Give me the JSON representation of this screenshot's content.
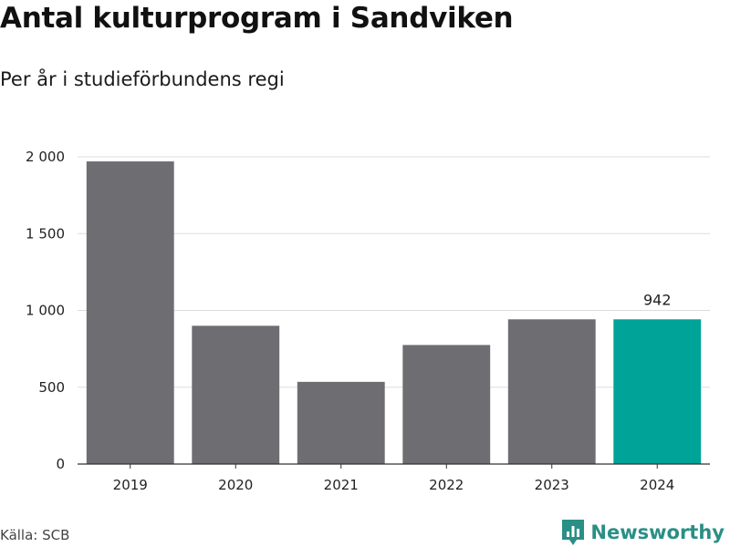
{
  "header": {
    "title": "Antal kulturprogram i Sandviken",
    "subtitle": "Per år i studieförbundens regi"
  },
  "footer": {
    "source": "Källa: SCB",
    "brand": "Newsworthy",
    "brand_icon": "newsworthy-logo-icon"
  },
  "colors": {
    "bar": "#6e6d72",
    "highlight": "#00a398",
    "grid": "#dddddd",
    "axis": "#333333"
  },
  "chart_data": {
    "type": "bar",
    "title": "Antal kulturprogram i Sandviken",
    "subtitle": "Per år i studieförbundens regi",
    "xlabel": "",
    "ylabel": "",
    "categories": [
      "2019",
      "2020",
      "2021",
      "2022",
      "2023",
      "2024"
    ],
    "values": [
      1970,
      900,
      535,
      775,
      942,
      942
    ],
    "highlight_index": 5,
    "data_labels": [
      {
        "index": 5,
        "text": "942"
      }
    ],
    "ylim": [
      0,
      2000
    ],
    "yticks": [
      0,
      500,
      1000,
      1500,
      2000
    ],
    "ytick_labels": [
      "0",
      "500",
      "1 000",
      "1 500",
      "2 000"
    ],
    "grid": true,
    "legend": "none"
  }
}
